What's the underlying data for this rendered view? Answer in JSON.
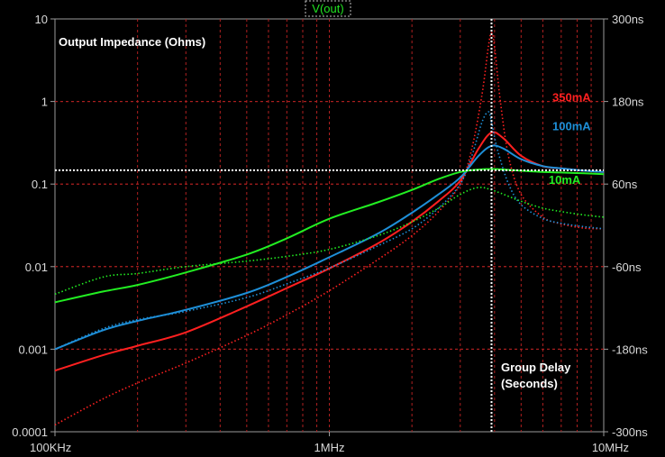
{
  "window": {
    "trace_title": "V(out)"
  },
  "chart_data": {
    "type": "line",
    "annotations": {
      "left": "Output Impedance (Ohms)",
      "right_line1": "Group Delay",
      "right_line2": "(Seconds)"
    },
    "x_axis": {
      "scale": "log",
      "range": [
        100000,
        10000000
      ],
      "ticks": [
        {
          "value": 100000,
          "label": "100KHz"
        },
        {
          "value": 1000000,
          "label": "1MHz"
        },
        {
          "value": 10000000,
          "label": "10MHz"
        }
      ]
    },
    "y_left": {
      "scale": "log",
      "range": [
        0.0001,
        10
      ],
      "ticks": [
        {
          "value": 10,
          "label": "10"
        },
        {
          "value": 1,
          "label": "1"
        },
        {
          "value": 0.1,
          "label": "0.1"
        },
        {
          "value": 0.01,
          "label": "0.01"
        },
        {
          "value": 0.001,
          "label": "0.001"
        },
        {
          "value": 0.0001,
          "label": "0.0001"
        }
      ]
    },
    "y_right": {
      "scale": "linear",
      "range": [
        -300,
        300
      ],
      "unit": "ns",
      "ticks": [
        {
          "value": 300,
          "label": "300ns"
        },
        {
          "value": 180,
          "label": "180ns"
        },
        {
          "value": 60,
          "label": "60ns"
        },
        {
          "value": -60,
          "label": "-60ns"
        },
        {
          "value": -180,
          "label": "-180ns"
        },
        {
          "value": -300,
          "label": "-300ns"
        }
      ]
    },
    "grid": true,
    "cursor": {
      "x": 3900000,
      "y_right": 80
    },
    "series": [
      {
        "name": "350mA",
        "color": "#ff2020",
        "label_at": {
          "x": 6500000,
          "y_left": 1.0
        },
        "impedance": {
          "x": [
            100000,
            150000,
            200000,
            300000,
            500000,
            700000,
            1000000,
            1500000,
            2000000,
            2500000,
            3000000,
            3500000,
            3900000,
            4300000,
            5000000,
            6000000,
            7000000,
            8500000,
            10000000
          ],
          "y": [
            0.00055,
            0.00085,
            0.0011,
            0.0016,
            0.0033,
            0.0055,
            0.0095,
            0.019,
            0.035,
            0.062,
            0.11,
            0.27,
            0.42,
            0.36,
            0.22,
            0.165,
            0.155,
            0.145,
            0.14
          ]
        },
        "group_delay_ns": {
          "x": [
            100000,
            150000,
            200000,
            300000,
            500000,
            700000,
            1000000,
            1500000,
            2000000,
            2500000,
            3000000,
            3300000,
            3600000,
            3800000,
            3900000,
            4000000,
            4200000,
            4500000,
            5000000,
            6000000,
            7000000,
            8500000,
            10000000
          ],
          "y": [
            -290,
            -252,
            -229,
            -200,
            -160,
            -130,
            -95,
            -50,
            -15,
            20,
            60,
            110,
            190,
            260,
            280,
            260,
            180,
            100,
            45,
            12,
            2,
            -4,
            -5
          ]
        }
      },
      {
        "name": "100mA",
        "color": "#1e8fd8",
        "label_at": {
          "x": 6500000,
          "y_left": 0.45
        },
        "impedance": {
          "x": [
            100000,
            150000,
            200000,
            300000,
            500000,
            700000,
            1000000,
            1500000,
            2000000,
            2500000,
            3000000,
            3500000,
            3900000,
            4300000,
            5000000,
            6000000,
            7000000,
            8500000,
            10000000
          ],
          "y": [
            0.001,
            0.0017,
            0.0022,
            0.003,
            0.0048,
            0.0075,
            0.013,
            0.025,
            0.045,
            0.075,
            0.12,
            0.22,
            0.29,
            0.27,
            0.2,
            0.165,
            0.155,
            0.145,
            0.14
          ]
        },
        "group_delay_ns": {
          "x": [
            100000,
            150000,
            200000,
            300000,
            500000,
            700000,
            1000000,
            1500000,
            2000000,
            2500000,
            3000000,
            3300000,
            3600000,
            3800000,
            3900000,
            4100000,
            4500000,
            5000000,
            6000000,
            7000000,
            8500000,
            10000000
          ],
          "y": [
            -180,
            -150,
            -137,
            -125,
            -105,
            -85,
            -62,
            -30,
            -5,
            25,
            60,
            100,
            150,
            165,
            150,
            110,
            60,
            30,
            10,
            3,
            -2,
            -5
          ]
        }
      },
      {
        "name": "10mA",
        "color": "#22ee22",
        "label_at": {
          "x": 6300000,
          "y_left": 0.1
        },
        "impedance": {
          "x": [
            100000,
            150000,
            200000,
            300000,
            500000,
            700000,
            1000000,
            1500000,
            2000000,
            2500000,
            3000000,
            3500000,
            4000000,
            5000000,
            6000000,
            7000000,
            8500000,
            10000000
          ],
          "y": [
            0.0037,
            0.005,
            0.006,
            0.0085,
            0.014,
            0.022,
            0.038,
            0.06,
            0.085,
            0.115,
            0.14,
            0.15,
            0.152,
            0.145,
            0.14,
            0.138,
            0.135,
            0.132
          ]
        },
        "group_delay_ns": {
          "x": [
            100000,
            150000,
            200000,
            300000,
            500000,
            700000,
            1000000,
            1500000,
            2000000,
            2500000,
            3000000,
            3500000,
            4000000,
            5000000,
            6000000,
            7000000,
            8500000,
            10000000
          ],
          "y": [
            -100,
            -75,
            -70,
            -60,
            -52,
            -45,
            -35,
            -15,
            5,
            25,
            45,
            55,
            50,
            35,
            25,
            20,
            15,
            12
          ]
        }
      }
    ]
  }
}
